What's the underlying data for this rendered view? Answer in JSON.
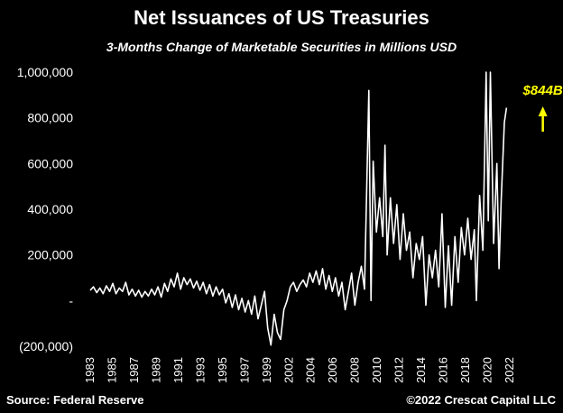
{
  "header": {
    "title": "Net Issuances of US Treasuries",
    "subtitle": "3-Months Change of Marketable Securities in Millions USD"
  },
  "footer": {
    "source": "Source: Federal Reserve",
    "credit": "©2022 Crescat Capital LLC"
  },
  "colors": {
    "background": "#000000",
    "line": "#ffffff",
    "callout": "#ffff00"
  },
  "chart_data": {
    "type": "line",
    "title": "Net Issuances of US Treasuries",
    "subtitle": "3-Months Change of Marketable Securities in Millions USD",
    "xlabel": "",
    "ylabel": "",
    "grid": false,
    "legend": "none",
    "xlim": [
      1983,
      2022
    ],
    "ylim": [
      -200000,
      1000000
    ],
    "y_ticks": [
      {
        "value": 1000000,
        "label": "1,000,000"
      },
      {
        "value": 800000,
        "label": "800,000"
      },
      {
        "value": 600000,
        "label": "600,000"
      },
      {
        "value": 400000,
        "label": "400,000"
      },
      {
        "value": 200000,
        "label": "200,000"
      },
      {
        "value": 0,
        "label": "-"
      },
      {
        "value": -200000,
        "label": "(200,000)"
      }
    ],
    "x_ticks": [
      "1983",
      "1985",
      "1987",
      "1989",
      "1991",
      "1993",
      "1995",
      "1997",
      "1999",
      "2002",
      "2004",
      "2006",
      "2008",
      "2010",
      "2012",
      "2014",
      "2016",
      "2018",
      "2020",
      "2022"
    ],
    "annotation": {
      "text": "$844B",
      "x": 2021.3,
      "y": 844000,
      "arrow": "up"
    },
    "series": [
      {
        "points": [
          [
            1983.0,
            45000
          ],
          [
            1983.3,
            60000
          ],
          [
            1983.6,
            35000
          ],
          [
            1983.9,
            55000
          ],
          [
            1984.2,
            30000
          ],
          [
            1984.5,
            65000
          ],
          [
            1984.8,
            40000
          ],
          [
            1985.1,
            75000
          ],
          [
            1985.4,
            30000
          ],
          [
            1985.7,
            55000
          ],
          [
            1986.0,
            40000
          ],
          [
            1986.3,
            80000
          ],
          [
            1986.6,
            25000
          ],
          [
            1986.9,
            50000
          ],
          [
            1987.2,
            20000
          ],
          [
            1987.5,
            45000
          ],
          [
            1987.8,
            15000
          ],
          [
            1988.1,
            40000
          ],
          [
            1988.4,
            20000
          ],
          [
            1988.7,
            50000
          ],
          [
            1989.0,
            25000
          ],
          [
            1989.3,
            60000
          ],
          [
            1989.6,
            15000
          ],
          [
            1989.9,
            75000
          ],
          [
            1990.2,
            40000
          ],
          [
            1990.5,
            95000
          ],
          [
            1990.8,
            60000
          ],
          [
            1991.1,
            120000
          ],
          [
            1991.4,
            50000
          ],
          [
            1991.7,
            100000
          ],
          [
            1992.0,
            70000
          ],
          [
            1992.3,
            95000
          ],
          [
            1992.6,
            55000
          ],
          [
            1992.9,
            85000
          ],
          [
            1993.2,
            45000
          ],
          [
            1993.5,
            80000
          ],
          [
            1993.8,
            30000
          ],
          [
            1994.1,
            70000
          ],
          [
            1994.4,
            20000
          ],
          [
            1994.7,
            60000
          ],
          [
            1995.0,
            25000
          ],
          [
            1995.3,
            50000
          ],
          [
            1995.6,
            -10000
          ],
          [
            1995.9,
            30000
          ],
          [
            1996.2,
            -30000
          ],
          [
            1996.5,
            25000
          ],
          [
            1996.8,
            -40000
          ],
          [
            1997.1,
            10000
          ],
          [
            1997.4,
            -50000
          ],
          [
            1997.7,
            0
          ],
          [
            1998.0,
            -60000
          ],
          [
            1998.3,
            20000
          ],
          [
            1998.6,
            -80000
          ],
          [
            1998.9,
            -20000
          ],
          [
            1999.2,
            40000
          ],
          [
            1999.5,
            -120000
          ],
          [
            1999.8,
            -195000
          ],
          [
            2000.1,
            -60000
          ],
          [
            2000.4,
            -140000
          ],
          [
            2000.7,
            -170000
          ],
          [
            2001.0,
            -40000
          ],
          [
            2001.3,
            0
          ],
          [
            2001.6,
            60000
          ],
          [
            2001.9,
            80000
          ],
          [
            2002.2,
            40000
          ],
          [
            2002.5,
            70000
          ],
          [
            2002.8,
            90000
          ],
          [
            2003.1,
            60000
          ],
          [
            2003.4,
            120000
          ],
          [
            2003.7,
            80000
          ],
          [
            2004.0,
            130000
          ],
          [
            2004.3,
            70000
          ],
          [
            2004.6,
            140000
          ],
          [
            2004.9,
            50000
          ],
          [
            2005.2,
            110000
          ],
          [
            2005.5,
            40000
          ],
          [
            2005.8,
            100000
          ],
          [
            2006.1,
            20000
          ],
          [
            2006.4,
            80000
          ],
          [
            2006.7,
            -40000
          ],
          [
            2007.0,
            40000
          ],
          [
            2007.3,
            120000
          ],
          [
            2007.6,
            -20000
          ],
          [
            2007.9,
            80000
          ],
          [
            2008.2,
            150000
          ],
          [
            2008.5,
            50000
          ],
          [
            2008.9,
            920000
          ],
          [
            2009.1,
            0
          ],
          [
            2009.3,
            610000
          ],
          [
            2009.6,
            300000
          ],
          [
            2009.9,
            450000
          ],
          [
            2010.2,
            280000
          ],
          [
            2010.4,
            680000
          ],
          [
            2010.6,
            200000
          ],
          [
            2010.9,
            450000
          ],
          [
            2011.2,
            250000
          ],
          [
            2011.5,
            420000
          ],
          [
            2011.8,
            180000
          ],
          [
            2012.1,
            380000
          ],
          [
            2012.4,
            220000
          ],
          [
            2012.7,
            300000
          ],
          [
            2013.0,
            100000
          ],
          [
            2013.3,
            250000
          ],
          [
            2013.6,
            180000
          ],
          [
            2013.9,
            280000
          ],
          [
            2014.2,
            -20000
          ],
          [
            2014.5,
            200000
          ],
          [
            2014.8,
            100000
          ],
          [
            2015.1,
            220000
          ],
          [
            2015.4,
            60000
          ],
          [
            2015.7,
            380000
          ],
          [
            2016.0,
            -30000
          ],
          [
            2016.3,
            240000
          ],
          [
            2016.6,
            -20000
          ],
          [
            2016.9,
            280000
          ],
          [
            2017.2,
            80000
          ],
          [
            2017.5,
            320000
          ],
          [
            2017.8,
            200000
          ],
          [
            2018.1,
            360000
          ],
          [
            2018.4,
            180000
          ],
          [
            2018.7,
            310000
          ],
          [
            2018.9,
            0
          ],
          [
            2019.2,
            460000
          ],
          [
            2019.5,
            220000
          ],
          [
            2019.8,
            1000000
          ],
          [
            2020.0,
            350000
          ],
          [
            2020.2,
            1000000
          ],
          [
            2020.5,
            250000
          ],
          [
            2020.8,
            600000
          ],
          [
            2021.0,
            140000
          ],
          [
            2021.2,
            440000
          ],
          [
            2021.5,
            780000
          ],
          [
            2021.7,
            844000
          ]
        ]
      }
    ]
  }
}
